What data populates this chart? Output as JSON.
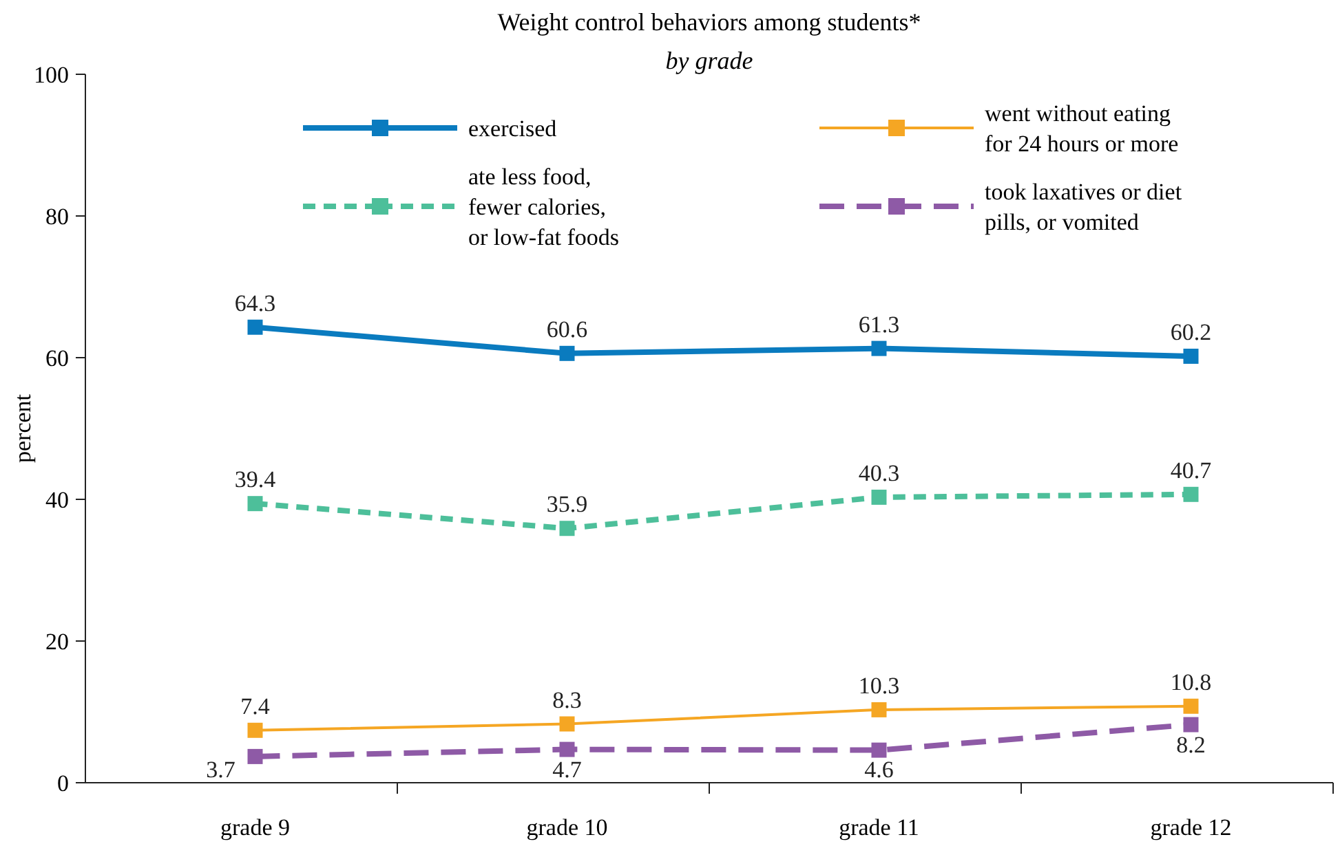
{
  "chart_data": {
    "type": "line",
    "title": "Weight control behaviors among students*",
    "subtitle": "by grade",
    "ylabel": "percent",
    "categories": [
      "grade 9",
      "grade 10",
      "grade 11",
      "grade 12"
    ],
    "ylim": [
      0,
      100
    ],
    "yticks": [
      0,
      20,
      40,
      60,
      80,
      100
    ],
    "grid": false,
    "legend": "top",
    "marker": "square",
    "data_labels": true,
    "series": [
      {
        "name": "exercised",
        "color": "#0a7bbf",
        "line_style": "solid",
        "values": [
          64.3,
          60.6,
          61.3,
          60.2
        ]
      },
      {
        "name": "ate less food, fewer calories, or low-fat foods",
        "color": "#4dbf9a",
        "line_style": "dashed",
        "values": [
          39.4,
          35.9,
          40.3,
          40.7
        ]
      },
      {
        "name": "went without eating for 24 hours or more",
        "color": "#f5a623",
        "line_style": "solid",
        "values": [
          7.4,
          8.3,
          10.3,
          10.8
        ]
      },
      {
        "name": "took laxatives or diet pills, or vomited",
        "color": "#8e5aa6",
        "line_style": "dashed",
        "values": [
          3.7,
          4.7,
          4.6,
          8.2
        ]
      }
    ]
  }
}
